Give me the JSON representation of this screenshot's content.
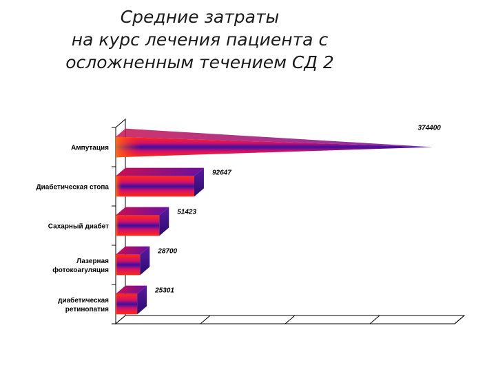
{
  "title_lines": [
    "Средние затраты",
    "на курс лечения пациента с",
    "осложненным течением СД 2"
  ],
  "chart_data": {
    "type": "bar",
    "orientation": "horizontal",
    "style": "3d-cone",
    "categories": [
      [
        "Ампутация"
      ],
      [
        "Диабетическая стопа"
      ],
      [
        "Сахарный диабет"
      ],
      [
        "Лазерная",
        "фотокоагуляция"
      ],
      [
        "диабетическая",
        "ретинопатия"
      ]
    ],
    "values": [
      374400,
      92647,
      51423,
      28700,
      25301
    ],
    "xlim": [
      0,
      400000
    ],
    "grid": false,
    "legend": "none",
    "colors": {
      "bar_edge": "#ff3a1a",
      "bar_mid": "#c0107a",
      "bar_core": "#3a10a0",
      "axis": "#000000"
    }
  }
}
